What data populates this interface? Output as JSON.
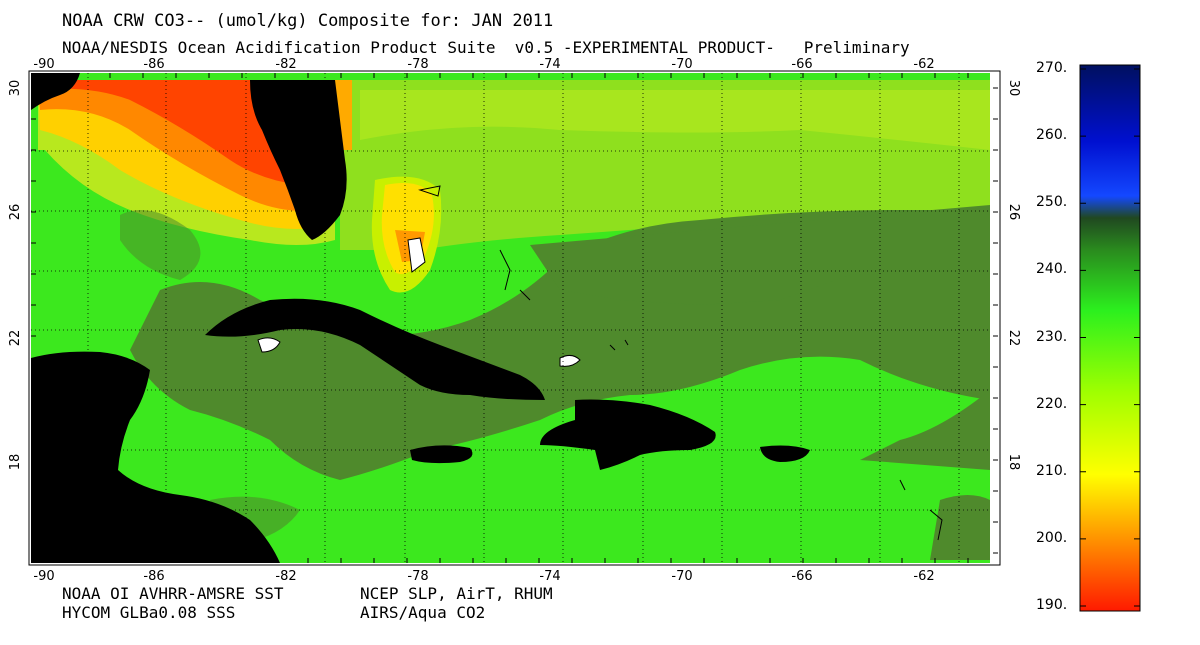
{
  "header": {
    "title": "NOAA CRW CO3-- (umol/kg) Composite for: JAN 2011",
    "subtitle": "NOAA/NESDIS Ocean Acidification Product Suite  v0.5 -EXPERIMENTAL PRODUCT-   Preliminary"
  },
  "map": {
    "lon_ticks": [
      "-90",
      "-86",
      "-82",
      "-78",
      "-74",
      "-70",
      "-66",
      "-62"
    ],
    "lat_ticks": [
      "30",
      "26",
      "22",
      "18"
    ],
    "colors": {
      "land": "#000000",
      "ocean_low": "#4f8a2c",
      "ocean_mid": "#3ce81e",
      "ocean_high": "#a6e61e",
      "warm": "#ff3300"
    }
  },
  "footer": {
    "src_sst": "NOAA OI AVHRR-AMSRE SST",
    "src_sss": "HYCOM GLBa0.08 SSS",
    "src_met": "NCEP SLP, AirT, RHUM",
    "src_co2": "AIRS/Aqua CO2"
  },
  "colorbar": {
    "labels": [
      "270.",
      "260.",
      "250.",
      "240.",
      "230.",
      "220.",
      "210.",
      "200.",
      "190."
    ],
    "min": 190,
    "max": 270
  }
}
